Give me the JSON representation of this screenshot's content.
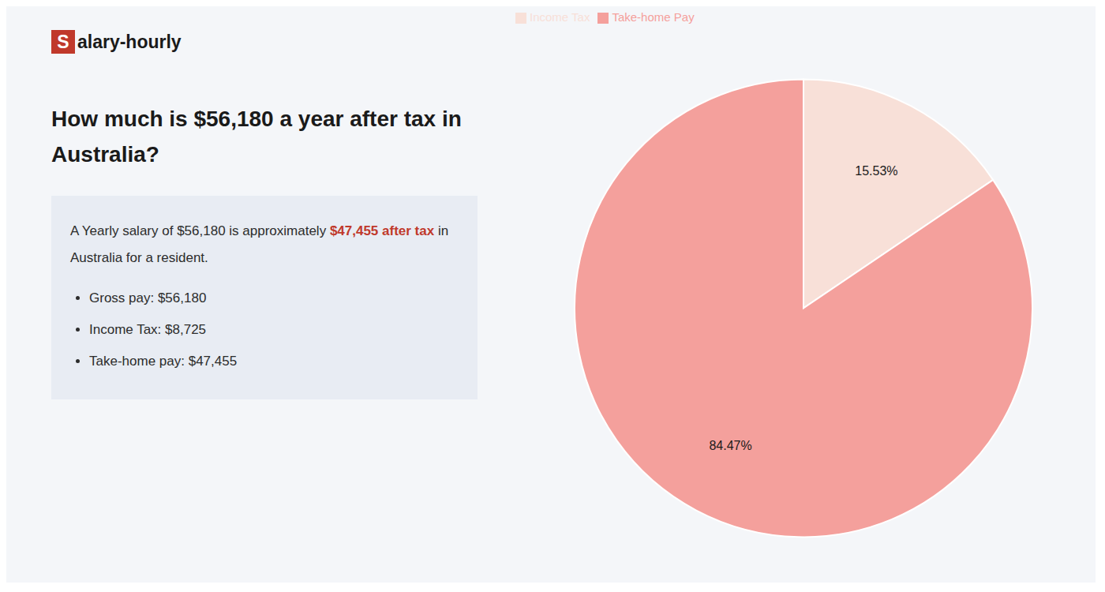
{
  "chart_data": {
    "type": "pie",
    "title": "How much is $56,180 a year after tax in\nAustralia?",
    "categories": [
      "Income Tax",
      "Take-home Pay"
    ],
    "values": [
      15.53,
      84.47
    ],
    "value_labels": [
      "15.53%",
      "84.47%"
    ],
    "colors": [
      "#f8e0d8",
      "#f4a09c"
    ],
    "data_labels": true,
    "legend": "upper left",
    "annotations": {
      "logo": [
        {
          "text": "S",
          "color": "#c0392b"
        },
        {
          "text": "alary-hourly"
        }
      ],
      "summary": [
        [
          {
            "text": "A Yearly salary of $56,180 is approximately "
          },
          {
            "text": "$47,455 after tax",
            "color": "#c0392b"
          },
          {
            "text": " in"
          }
        ],
        [
          {
            "text": "Australia for a resident."
          }
        ]
      ],
      "bullets": [
        "Gross pay: $56,180",
        "Income Tax: $8,725",
        "Take-home pay: $47,455"
      ]
    }
  }
}
